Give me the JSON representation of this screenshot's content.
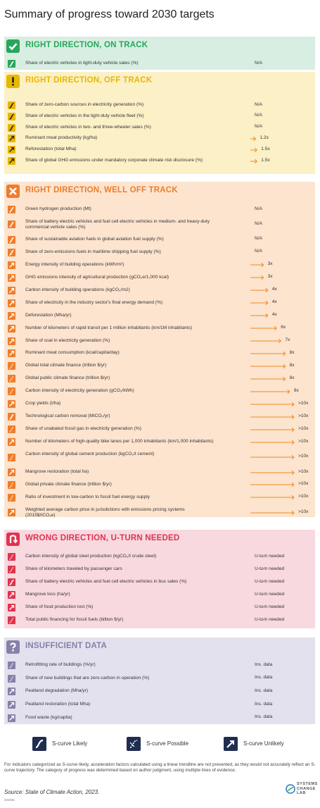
{
  "title": "Summary of progress toward 2030 targets",
  "colors": {
    "on_track_bg": "#d8eee2",
    "on_track_accent": "#27a65c",
    "off_track_bg": "#fbf0c6",
    "off_track_accent": "#e8b800",
    "well_off_bg": "#fce4cf",
    "well_off_accent": "#ef7d2b",
    "uturn_bg": "#f8d9e0",
    "uturn_accent": "#e0334d",
    "insufficient_bg": "#e3e1ee",
    "insufficient_accent": "#8581a8"
  },
  "chart_data": {
    "type": "table",
    "title": "Summary of progress toward 2030 targets",
    "categories": [
      {
        "key": "on_track",
        "label": "RIGHT DIRECTION, ON TRACK",
        "badge_icon": "check-icon",
        "indicators": [
          {
            "label": "Share of electric vehicles in light-duty vehicle sales (%)",
            "value": "N/A",
            "scurve": "likely"
          }
        ]
      },
      {
        "key": "off_track",
        "label": "RIGHT DIRECTION, OFF TRACK",
        "badge_icon": "exclamation-icon",
        "indicators": [
          {
            "label": "Share of zero-carbon sources in electricity generation (%)",
            "value": "N/A",
            "scurve": "likely"
          },
          {
            "label": "Share of electric vehicles in the light-duty vehicle fleet (%)",
            "value": "N/A",
            "scurve": "likely"
          },
          {
            "label": "Share of electric vehicles in two- and three-wheeler sales (%)",
            "value": "N/A",
            "scurve": "likely"
          },
          {
            "label": "Ruminant meat productivity (kg/ha)",
            "value": "1.2x",
            "factor": 1.2,
            "scurve": "unlikely"
          },
          {
            "label": "Reforestation (total Mha)",
            "value": "1.5x",
            "factor": 1.5,
            "scurve": "unlikely"
          },
          {
            "label": "Share of global GHG emissions under mandatory corporate climate risk disclosure (%)",
            "value": "1.5x",
            "factor": 1.5,
            "scurve": "unlikely"
          }
        ]
      },
      {
        "key": "well_off",
        "label": "RIGHT DIRECTION, WELL OFF TRACK",
        "badge_icon": "cross-icon",
        "indicators": [
          {
            "label": "Green hydrogen production (Mt)",
            "value": "N/A",
            "scurve": "likely"
          },
          {
            "label": "Share of battery electric vehicles and fuel cell electric vehicles in medium- and heavy-duty commercial vehicle sales (%)",
            "value": "N/A",
            "scurve": "likely"
          },
          {
            "label": "Share of sustainable aviation fuels in global aviation fuel supply (%)",
            "value": "N/A",
            "scurve": "likely"
          },
          {
            "label": "Share of zero-emissions fuels in maritime shipping fuel supply (%)",
            "value": "N/A",
            "scurve": "likely"
          },
          {
            "label": "Energy intensity of building operations (kWh/m²)",
            "value": "3x",
            "factor": 3,
            "scurve": "unlikely"
          },
          {
            "label": "GHG emissions intensity of agricultural production (gCO₂e/1,000 kcal)",
            "value": "3x",
            "factor": 3,
            "scurve": "unlikely"
          },
          {
            "label": "Carbon intensity of building operations (kgCO₂/m2)",
            "value": "4x",
            "factor": 4,
            "scurve": "unlikely"
          },
          {
            "label": "Share of electricity in the industry sector's final energy demand (%)",
            "value": "4x",
            "factor": 4,
            "scurve": "unlikely"
          },
          {
            "label": "Deforestation (Mha/yr)",
            "value": "4x",
            "factor": 4,
            "scurve": "unlikely"
          },
          {
            "label": "Number of kilometers of rapid transit per 1 million inhabitants (km/1M inhabitants)",
            "value": "6x",
            "factor": 6,
            "scurve": "unlikely"
          },
          {
            "label": "Share of coal in electricity generation (%)",
            "value": "7x",
            "factor": 7,
            "scurve": "unlikely"
          },
          {
            "label": "Ruminant meat consumption (kcal/capita/day)",
            "value": "8x",
            "factor": 8,
            "scurve": "unlikely"
          },
          {
            "label": "Global total climate finance (trillion $/yr)",
            "value": "8x",
            "factor": 8,
            "scurve": "possible"
          },
          {
            "label": "Global public climate finance (trillion $/yr)",
            "value": "8x",
            "factor": 8,
            "scurve": "possible"
          },
          {
            "label": "Carbon intensity of electricity generation (gCO₂/kWh)",
            "value": "9x",
            "factor": 9,
            "scurve": "possible"
          },
          {
            "label": "Crop yields (t/ha)",
            "value": ">10x",
            "factor": 10,
            "scurve": "unlikely"
          },
          {
            "label": "Technological carbon removal (MtCO₂/yr)",
            "value": ">10x",
            "factor": 10,
            "scurve": "likely"
          },
          {
            "label": "Share of unabated fossil gas in electricity generation (%)",
            "value": ">10x",
            "factor": 10,
            "scurve": "possible"
          },
          {
            "label": "Number of kilometers of high-quality bike lanes per 1,000 inhabitants (km/1,000 inhabitants)",
            "value": ">10x",
            "factor": 10,
            "scurve": "unlikely"
          },
          {
            "label": "Carbon intensity of global cement production (kgCO₂/t cement)",
            "value": ">10x",
            "factor": 10,
            "scurve": "possible"
          },
          {
            "label": "Mangrove restoration (total ha)",
            "value": ">10x",
            "factor": 10,
            "scurve": "unlikely"
          },
          {
            "label": "Global private climate finance (trillion $/yr)",
            "value": ">10x",
            "factor": 10,
            "scurve": "possible"
          },
          {
            "label": "Ratio of investment in low-carbon to fossil fuel energy supply",
            "value": ">10x",
            "factor": 10,
            "scurve": "possible"
          },
          {
            "label": "Weighted average carbon price in jurisdictions with emissions pricing systems (2015$/tCO₂e)",
            "value": ">10x",
            "factor": 10,
            "scurve": "unlikely"
          }
        ]
      },
      {
        "key": "uturn",
        "label": "WRONG DIRECTION, U-TURN NEEDED",
        "badge_icon": "uturn-icon",
        "indicators": [
          {
            "label": "Carbon intensity of global steel production (kgCO₂/t crude steel)",
            "value": "U-turn needed",
            "scurve": "possible"
          },
          {
            "label": "Share of kilometers traveled by passenger cars",
            "value": "U-turn needed",
            "scurve": "possible"
          },
          {
            "label": "Share of battery electric vehicles  and fuel cell electric vehicles in bus sales (%)",
            "value": "U-turn needed",
            "scurve": "likely"
          },
          {
            "label": "Mangrove loss (ha/yr)",
            "value": "U-turn needed",
            "scurve": "unlikely"
          },
          {
            "label": "Share of food production lost (%)",
            "value": "U-turn needed",
            "scurve": "unlikely"
          },
          {
            "label": "Total public financing for fossil fuels (billion $/yr)",
            "value": "U-turn needed",
            "scurve": "possible"
          }
        ]
      },
      {
        "key": "insufficient",
        "label": "INSUFFICIENT DATA",
        "badge_icon": "question-icon",
        "indicators": [
          {
            "label": "Retrofitting rate of buildings (%/yr)",
            "value": "Ins. data",
            "scurve": "possible"
          },
          {
            "label": "Share of new buildings that are zero-carbon in operation (%)",
            "value": "Ins. data",
            "scurve": "possible"
          },
          {
            "label": "Peatland degradation (Mha/yr)",
            "value": "Ins. data",
            "scurve": "unlikely"
          },
          {
            "label": "Peatland restoration (total Mha)",
            "value": "Ins. data",
            "scurve": "unlikely"
          },
          {
            "label": "Food waste (kg/capita)",
            "value": "Ins. data",
            "scurve": "unlikely"
          }
        ]
      }
    ]
  },
  "legend": [
    {
      "label": "S-curve Likely",
      "icon": "s-curve-likely-icon"
    },
    {
      "label": "S-curve Possible",
      "icon": "s-curve-possible-icon"
    },
    {
      "label": "S-curve Unlikely",
      "icon": "s-curve-unlikely-icon"
    }
  ],
  "footnote": "For indicators categorized as S-curve likely, acceleration factors calculated using a linear trendline are not presented, as they would not accurately reflect an S-curve trajectory. The category of progress was determined based on author judgment, using multiple lines of evidence.",
  "source": "Source: State of Climate Action, 2023.",
  "code": "231031",
  "logo": {
    "text": "SYSTEMS CHANGE LAB"
  }
}
